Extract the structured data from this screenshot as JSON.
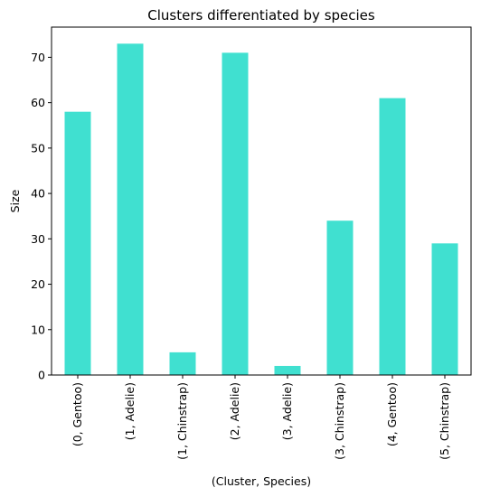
{
  "chart_data": {
    "type": "bar",
    "title": "Clusters differentiated by species",
    "xlabel": "(Cluster, Species)",
    "ylabel": "Size",
    "categories": [
      "(0, Gentoo)",
      "(1, Adelie)",
      "(1, Chinstrap)",
      "(2, Adelie)",
      "(3, Adelie)",
      "(3, Chinstrap)",
      "(4, Gentoo)",
      "(5, Chinstrap)"
    ],
    "values": [
      58,
      73,
      5,
      71,
      2,
      34,
      61,
      29
    ],
    "ylim": [
      0,
      76.65
    ],
    "yticks": [
      0,
      10,
      20,
      30,
      40,
      50,
      60,
      70
    ],
    "bar_color": "#40e0d0",
    "grid": false,
    "legend": "none"
  }
}
